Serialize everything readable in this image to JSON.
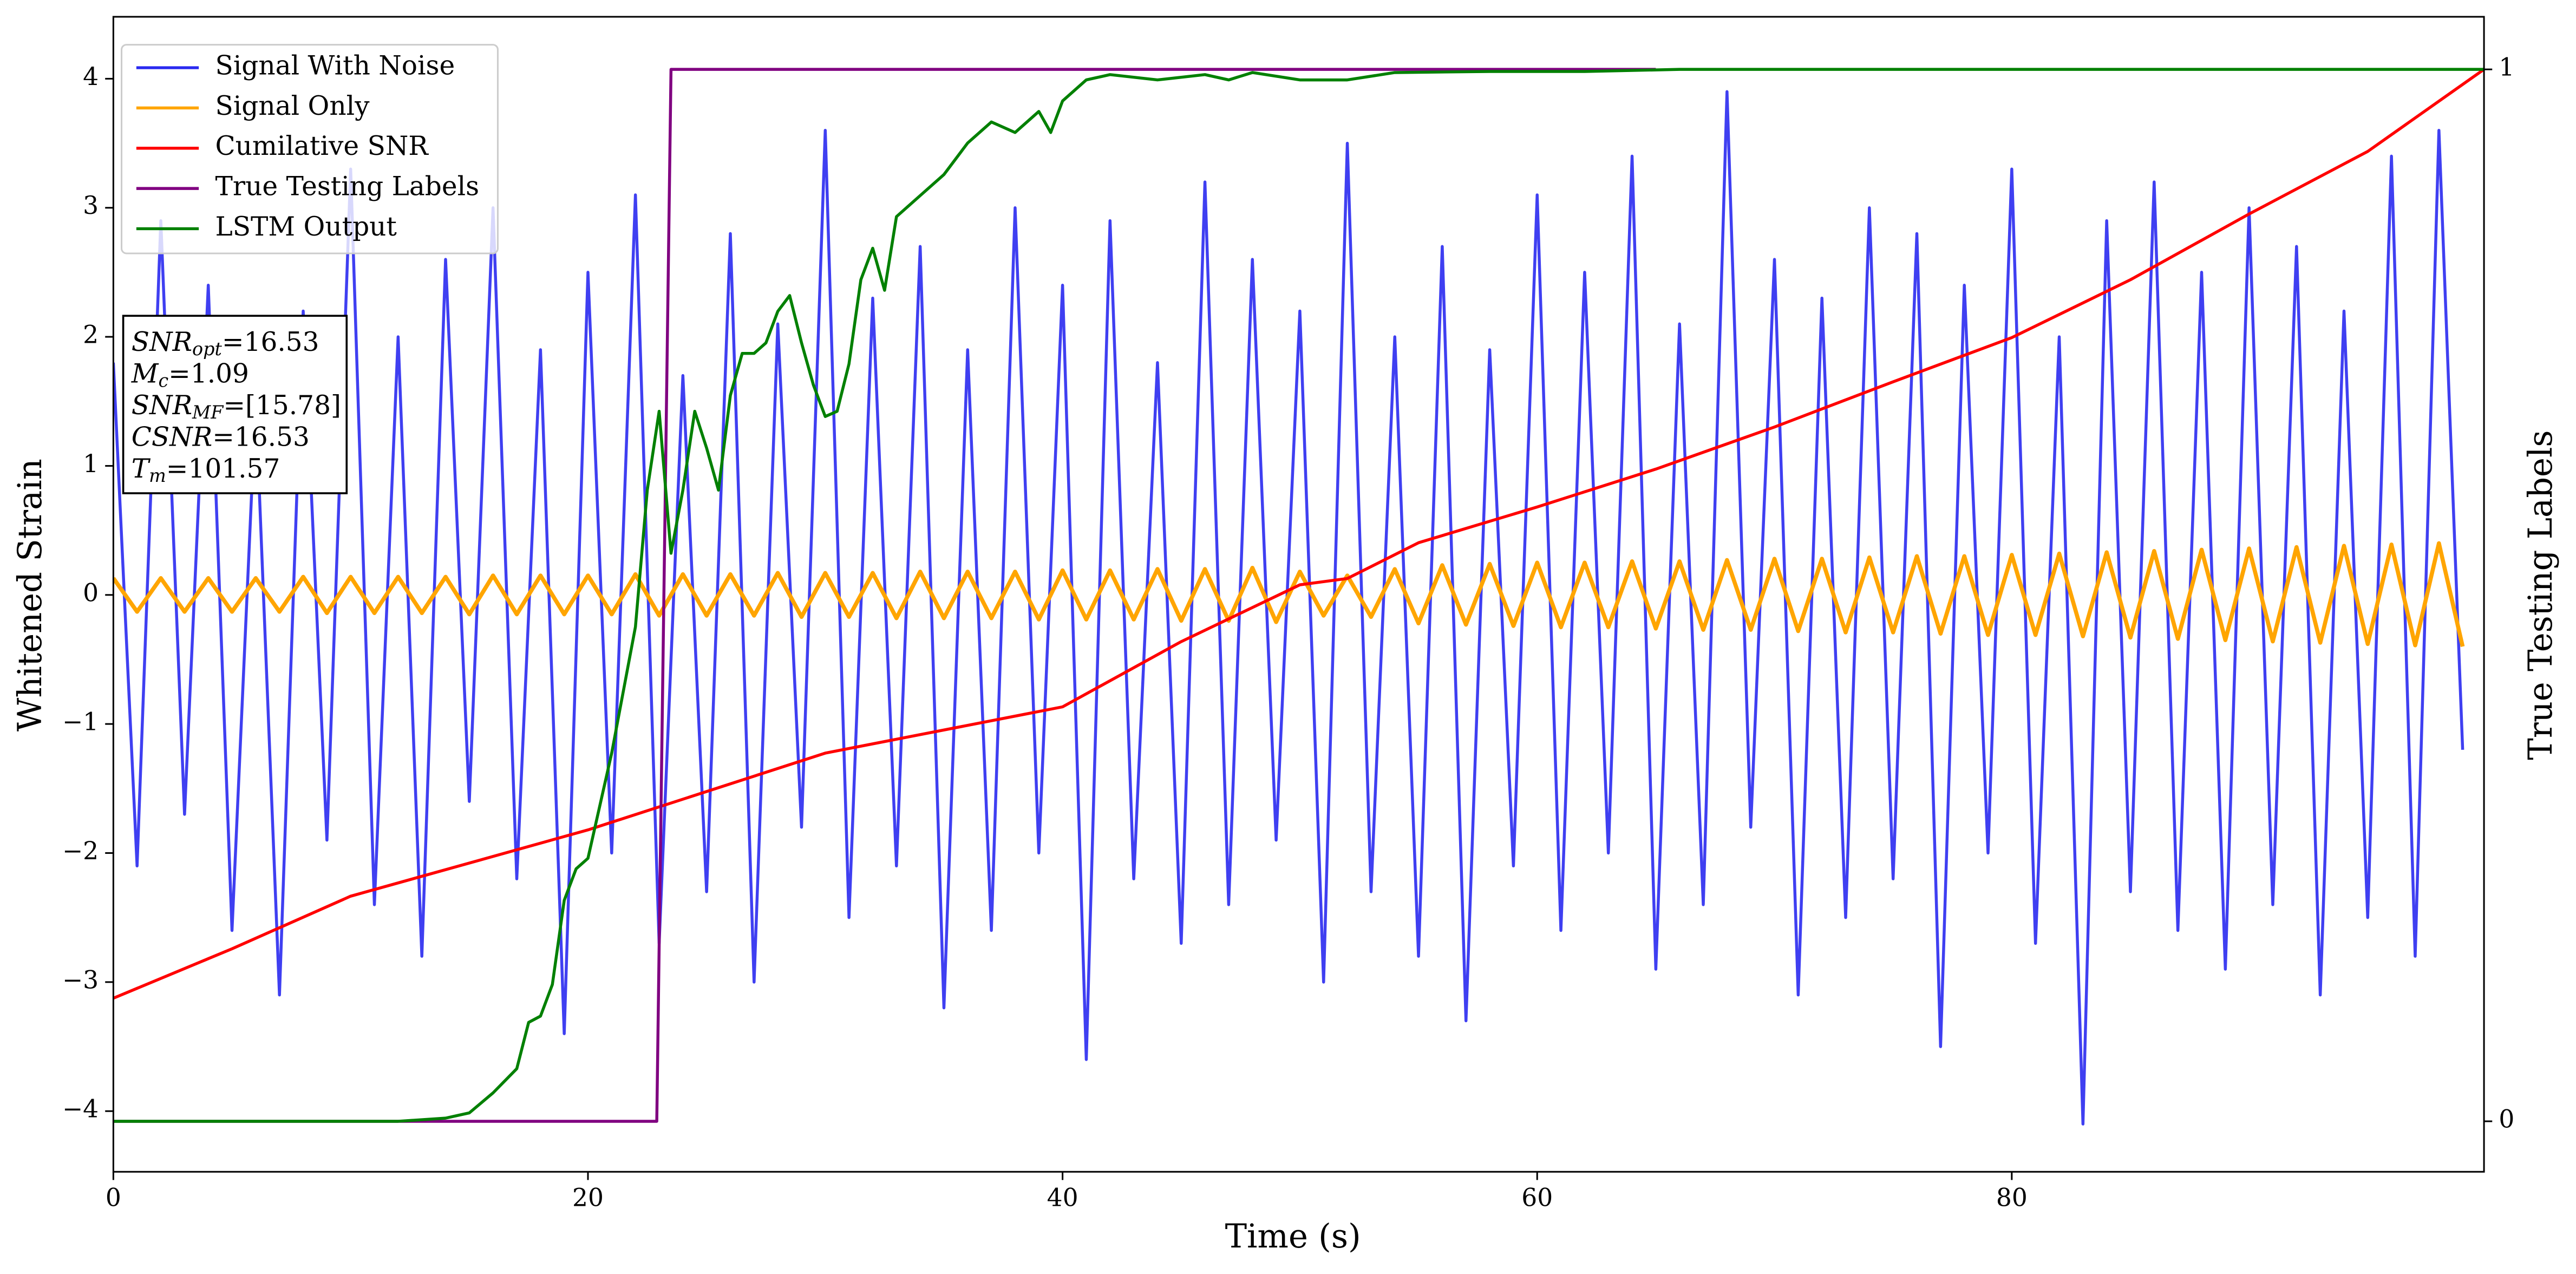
{
  "chart_data": {
    "type": "line",
    "xlabel": "Time (s)",
    "ylabel": "Whitened Strain",
    "y2label": "True Testing Labels",
    "xlim": [
      0,
      99.9
    ],
    "xticks": [
      0,
      20,
      40,
      60,
      80
    ],
    "ylim": [
      -4.47,
      4.48
    ],
    "yticks": [
      -4,
      -3,
      -2,
      -1,
      0,
      1,
      2,
      3,
      4
    ],
    "y2lim": [
      -0.048,
      1.05
    ],
    "y2ticks": [
      0,
      1
    ],
    "legend": "upper left",
    "annotation": [
      {
        "name": "SNR",
        "sub": "opt",
        "text": "=16.53"
      },
      {
        "name": "M",
        "sub": "c",
        "text": "=1.09"
      },
      {
        "name": "SNR",
        "sub": "MF",
        "text": "=[15.78]"
      },
      {
        "name": "CSNR",
        "text": "=16.53"
      },
      {
        "name": "T",
        "sub": "m",
        "text": "=101.57"
      }
    ],
    "x": [
      0,
      1,
      2,
      3,
      4,
      5,
      6,
      7,
      8,
      9,
      10,
      11,
      12,
      13,
      14,
      15,
      16,
      17,
      18,
      19,
      20,
      21,
      22,
      23,
      24,
      25,
      26,
      27,
      28,
      29,
      30,
      31,
      32,
      33,
      34,
      35,
      36,
      37,
      38,
      39,
      40,
      41,
      42,
      43,
      44,
      45,
      46,
      47,
      48,
      49,
      50,
      51,
      52,
      53,
      54,
      55,
      56,
      57,
      58,
      59,
      60,
      61,
      62,
      63,
      64,
      65,
      66,
      67,
      68,
      69,
      70,
      71,
      72,
      73,
      74,
      75,
      76,
      77,
      78,
      79,
      80,
      81,
      82,
      83,
      84,
      85,
      86,
      87,
      88,
      89,
      90,
      91,
      92,
      93,
      94,
      95,
      96,
      97,
      98,
      99
    ],
    "series": [
      {
        "name": "Signal With Noise",
        "color": "#2a2af0",
        "values": [
          1.8,
          -2.1,
          2.9,
          -1.7,
          2.4,
          -2.6,
          1.5,
          -3.1,
          2.2,
          -1.9,
          3.3,
          -2.4,
          2.0,
          -2.8,
          2.6,
          -1.6,
          3.0,
          -2.2,
          1.9,
          -3.4,
          2.5,
          -2.0,
          3.1,
          -2.7,
          1.7,
          -2.3,
          2.8,
          -3.0,
          2.1,
          -1.8,
          3.6,
          -2.5,
          2.3,
          -2.1,
          2.7,
          -3.2,
          1.9,
          -2.6,
          3.0,
          -2.0,
          2.4,
          -3.6,
          2.9,
          -2.2,
          1.8,
          -2.7,
          3.2,
          -2.4,
          2.6,
          -1.9,
          2.2,
          -3.0,
          3.5,
          -2.3,
          2.0,
          -2.8,
          2.7,
          -3.3,
          1.9,
          -2.1,
          3.1,
          -2.6,
          2.5,
          -2.0,
          3.4,
          -2.9,
          2.1,
          -2.4,
          3.9,
          -1.8,
          2.6,
          -3.1,
          2.3,
          -2.5,
          3.0,
          -2.2,
          2.8,
          -3.5,
          2.4,
          -2.0,
          3.3,
          -2.7,
          2.0,
          -4.1,
          2.9,
          -2.3,
          3.2,
          -2.6,
          2.5,
          -2.9,
          3.0,
          -2.4,
          2.7,
          -3.1,
          2.2,
          -2.5,
          3.4,
          -2.8,
          3.6,
          -1.2
        ]
      },
      {
        "name": "Signal Only",
        "color": "#ffa500",
        "values": [
          0.13,
          -0.13,
          0.13,
          -0.13,
          0.13,
          -0.13,
          0.13,
          -0.13,
          0.14,
          -0.14,
          0.14,
          -0.14,
          0.14,
          -0.14,
          0.14,
          -0.15,
          0.15,
          -0.15,
          0.15,
          -0.15,
          0.15,
          -0.15,
          0.16,
          -0.16,
          0.16,
          -0.16,
          0.16,
          -0.16,
          0.17,
          -0.17,
          0.17,
          -0.17,
          0.17,
          -0.18,
          0.18,
          -0.18,
          0.18,
          -0.18,
          0.18,
          -0.19,
          0.19,
          -0.19,
          0.19,
          -0.19,
          0.2,
          -0.2,
          0.2,
          -0.2,
          0.21,
          -0.21,
          0.18,
          -0.16,
          0.15,
          -0.17,
          0.2,
          -0.22,
          0.23,
          -0.23,
          0.24,
          -0.24,
          0.25,
          -0.25,
          0.25,
          -0.25,
          0.26,
          -0.26,
          0.26,
          -0.27,
          0.27,
          -0.27,
          0.28,
          -0.28,
          0.28,
          -0.29,
          0.29,
          -0.29,
          0.3,
          -0.3,
          0.3,
          -0.31,
          0.31,
          -0.31,
          0.32,
          -0.32,
          0.33,
          -0.33,
          0.34,
          -0.34,
          0.35,
          -0.35,
          0.36,
          -0.36,
          0.37,
          -0.37,
          0.38,
          -0.38,
          0.39,
          -0.39,
          0.4,
          -0.4
        ]
      },
      {
        "name": "Cumilative SNR",
        "color": "#ff0000",
        "axis": "y2",
        "x": [
          0,
          5,
          10,
          20,
          30,
          40,
          45,
          50,
          52,
          55,
          60,
          65,
          70,
          75,
          80,
          85,
          90,
          95,
          99.9
        ],
        "values": [
          0.117,
          0.164,
          0.214,
          0.277,
          0.35,
          0.394,
          0.456,
          0.51,
          0.516,
          0.55,
          0.584,
          0.62,
          0.66,
          0.703,
          0.745,
          0.8,
          0.8625,
          0.922,
          1.0
        ]
      },
      {
        "name": "True Testing Labels",
        "color": "#800080",
        "axis": "y2",
        "x": [
          0,
          22.9,
          23.5,
          65
        ],
        "values": [
          0,
          0,
          1,
          1
        ]
      },
      {
        "name": "LSTM Output",
        "color": "#008000",
        "axis": "y2",
        "x": [
          0,
          12,
          14,
          15,
          16,
          17,
          17.5,
          18,
          18.5,
          19,
          19.5,
          20,
          20.5,
          21,
          21.5,
          22,
          22.5,
          23,
          23.5,
          24,
          24.5,
          25,
          25.5,
          26,
          26.5,
          27,
          27.5,
          28,
          28.5,
          29,
          29.5,
          30,
          30.5,
          31,
          31.5,
          32,
          32.5,
          33,
          34,
          35,
          36,
          37,
          38,
          39,
          39.5,
          40,
          41,
          42,
          44,
          46,
          47,
          48,
          50,
          52,
          54,
          58,
          62,
          66,
          99.9
        ],
        "values": [
          0,
          0,
          0.003,
          0.008,
          0.027,
          0.05,
          0.094,
          0.1,
          0.13,
          0.21,
          0.24,
          0.25,
          0.3,
          0.35,
          0.41,
          0.47,
          0.6,
          0.675,
          0.54,
          0.6,
          0.675,
          0.64,
          0.6,
          0.69,
          0.73,
          0.73,
          0.74,
          0.77,
          0.785,
          0.74,
          0.7,
          0.67,
          0.675,
          0.72,
          0.8,
          0.83,
          0.79,
          0.86,
          0.88,
          0.9,
          0.93,
          0.95,
          0.94,
          0.96,
          0.94,
          0.97,
          0.99,
          0.995,
          0.99,
          0.995,
          0.99,
          0.997,
          0.99,
          0.99,
          0.997,
          0.998,
          0.998,
          1.0,
          1.0
        ]
      }
    ]
  }
}
